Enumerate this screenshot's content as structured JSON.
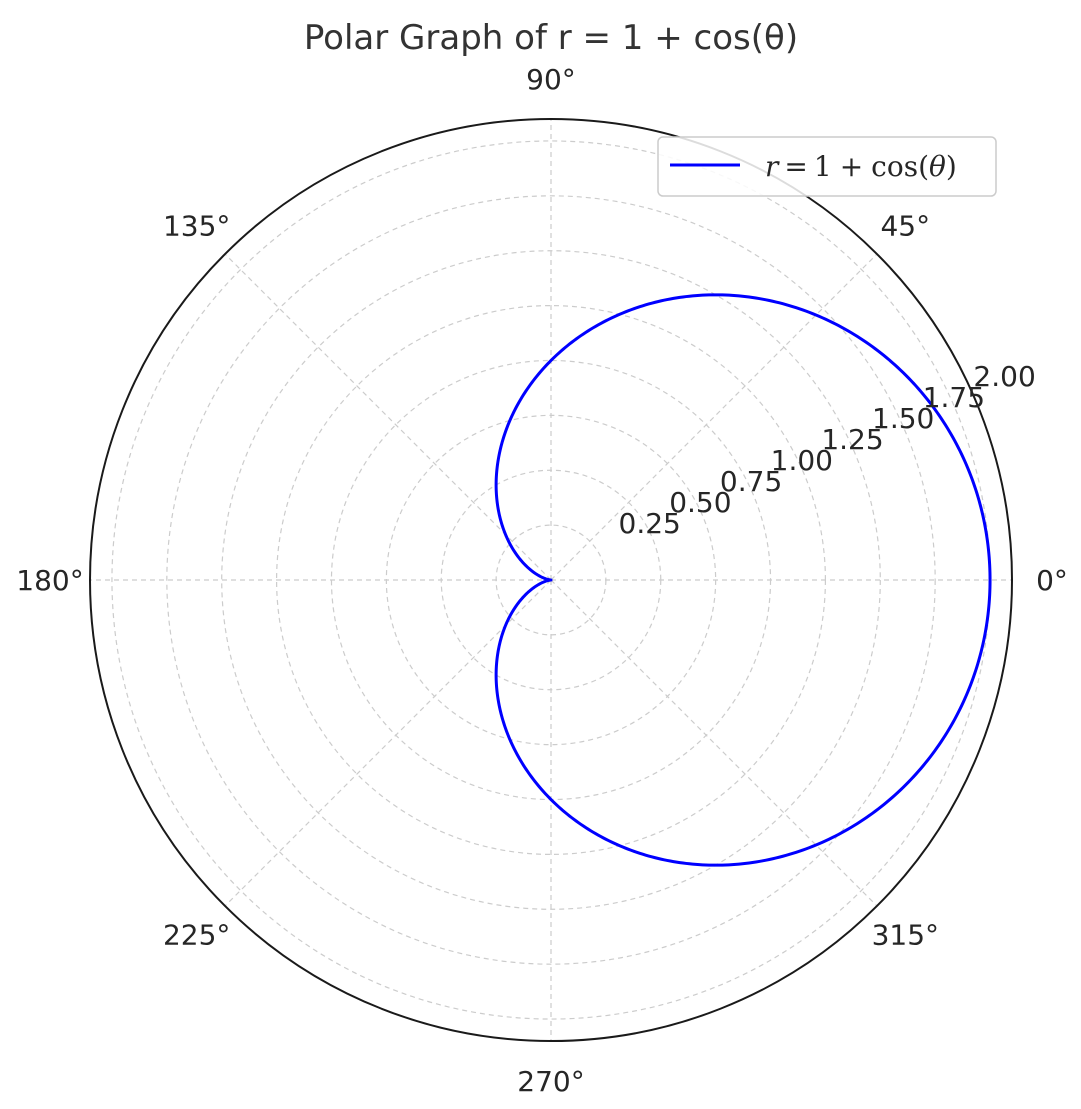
{
  "chart_data": {
    "type": "line",
    "projection": "polar",
    "title": "Polar Graph of r = 1 + cos(θ)",
    "theta_ticks": [
      0,
      45,
      90,
      135,
      180,
      225,
      270,
      315
    ],
    "theta_tick_labels": [
      "0°",
      "45°",
      "90°",
      "135°",
      "180°",
      "225°",
      "270°",
      "315°"
    ],
    "r_ticks": [
      0.25,
      0.5,
      0.75,
      1.0,
      1.25,
      1.5,
      1.75,
      2.0
    ],
    "r_tick_labels": [
      "0.25",
      "0.50",
      "0.75",
      "1.00",
      "1.25",
      "1.50",
      "1.75",
      "2.00"
    ],
    "rlim": [
      0,
      2.1
    ],
    "grid": true,
    "legend_position": "top-right",
    "series": [
      {
        "name": "r = 1 + cos(θ)",
        "function": "1 + cos(theta)",
        "theta_range": [
          0,
          360
        ],
        "color": "#0000ff"
      }
    ],
    "legend": {
      "r": "r",
      "eq": "=",
      "one": "1",
      "plus": "+",
      "cos": "cos(",
      "theta": "θ",
      "close": ")"
    }
  }
}
